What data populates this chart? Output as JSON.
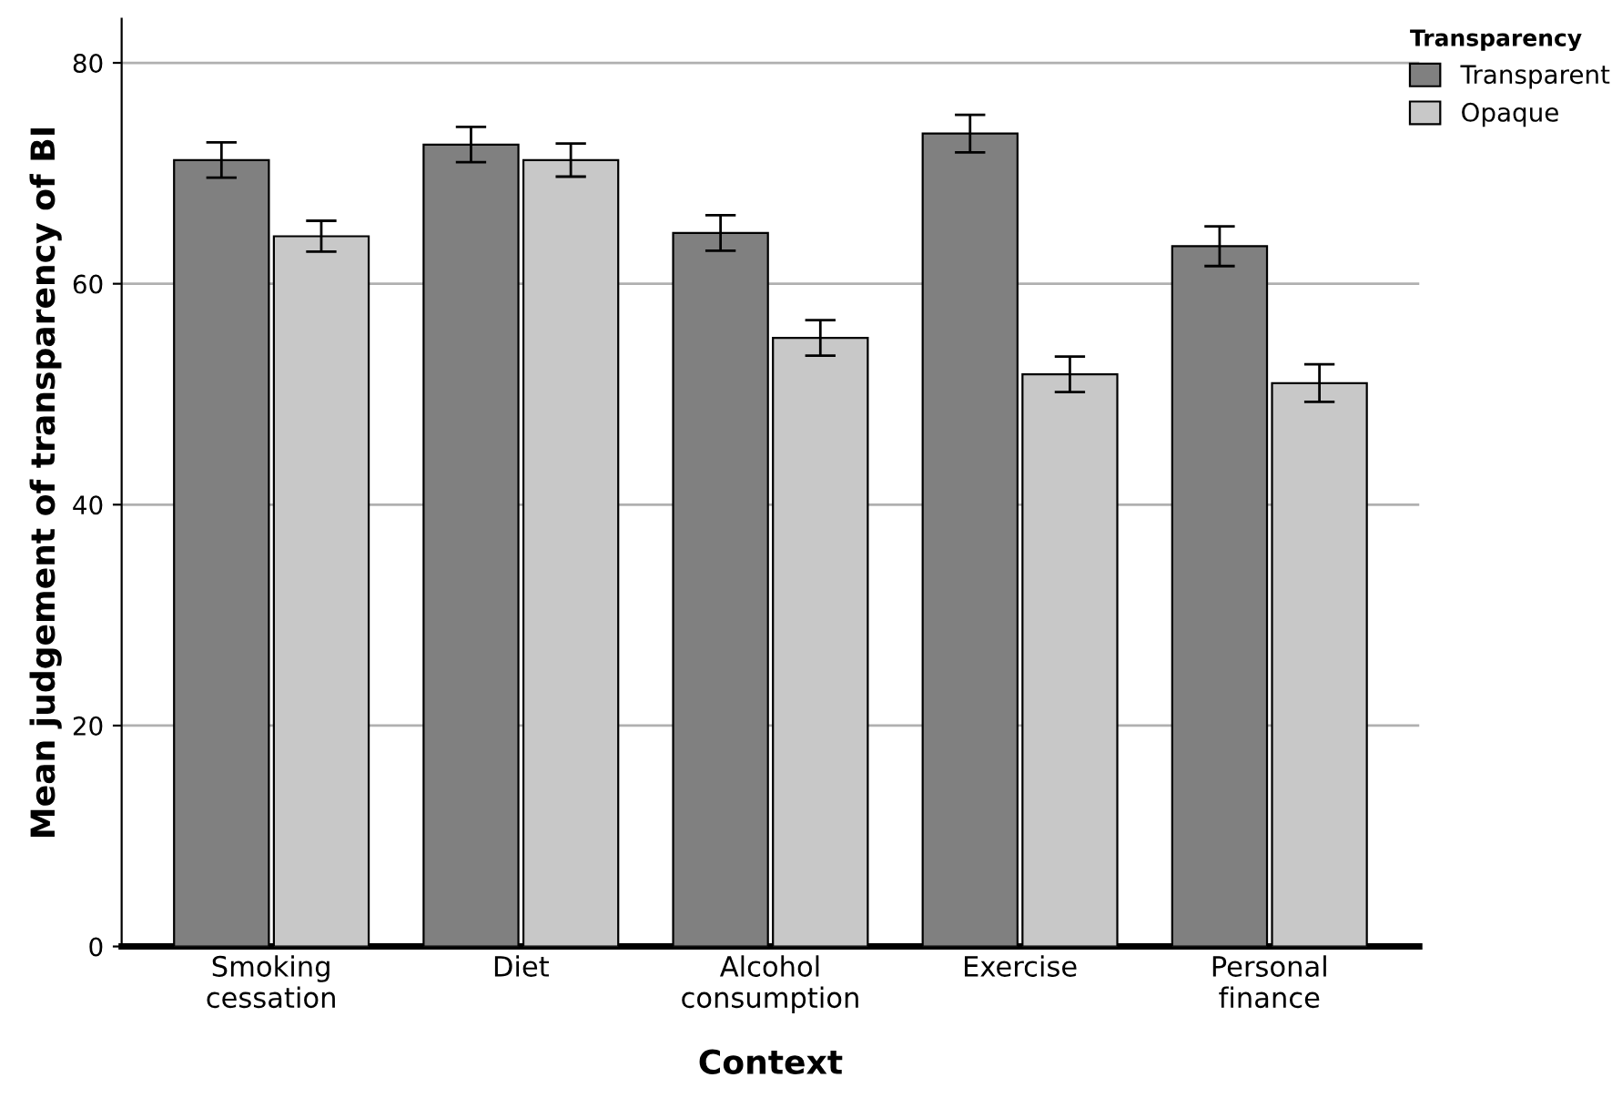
{
  "chart_data": {
    "type": "bar",
    "xlabel": "Context",
    "ylabel": "Mean judgement of transparency of BI",
    "legend_title": "Transparency",
    "categories": [
      "Smoking\ncessation",
      "Diet",
      "Alcohol\nconsumption",
      "Exercise",
      "Personal\nfinance"
    ],
    "series": [
      {
        "name": "Transparent",
        "color": "#808080",
        "values": [
          71.2,
          72.6,
          64.6,
          73.6,
          63.4
        ],
        "errors": [
          1.6,
          1.6,
          1.6,
          1.7,
          1.8
        ]
      },
      {
        "name": "Opaque",
        "color": "#c8c8c8",
        "values": [
          64.3,
          71.2,
          55.1,
          51.8,
          51.0
        ],
        "errors": [
          1.4,
          1.5,
          1.6,
          1.6,
          1.7
        ]
      }
    ],
    "ylim": [
      0,
      84
    ],
    "yticks": [
      0,
      20,
      40,
      60,
      80
    ],
    "grid": "y",
    "legend": "top right"
  }
}
